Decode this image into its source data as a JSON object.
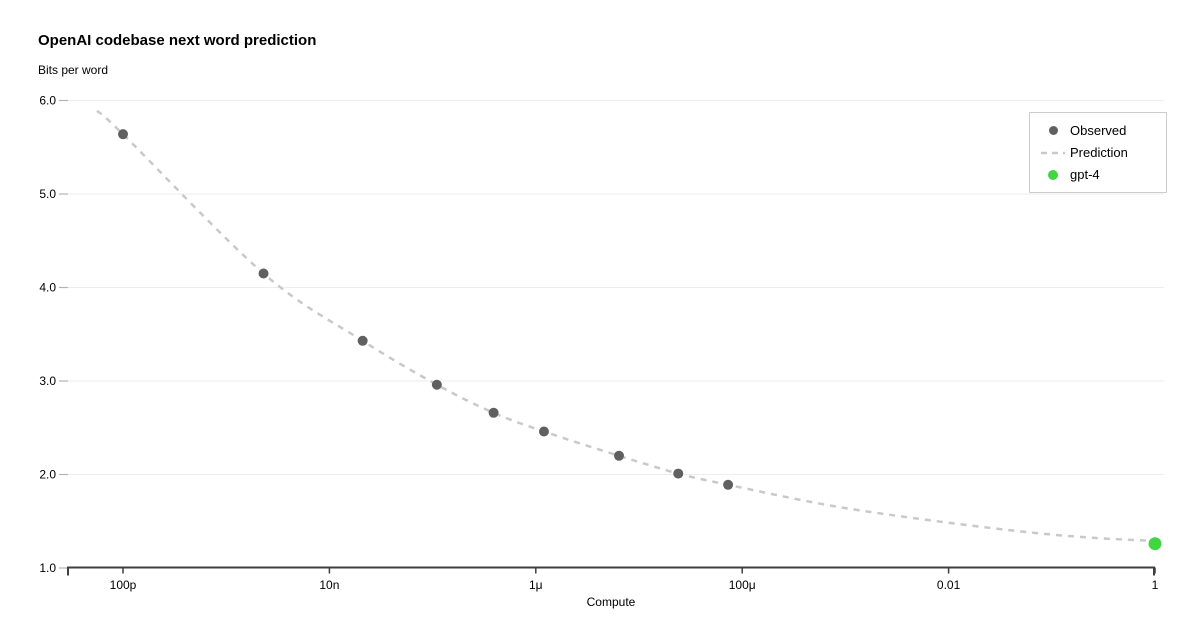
{
  "chart_data": {
    "type": "scatter",
    "title": "OpenAI codebase next word prediction",
    "y_axis_top_label": "Bits per word",
    "xlabel": "Compute",
    "x_scale": "log",
    "xlim": [
      1e-10,
      1
    ],
    "ylim": [
      1.0,
      6.0
    ],
    "grid": "horizontal-only",
    "x_ticks": [
      {
        "label": "100p",
        "value": 1e-10
      },
      {
        "label": "10n",
        "value": 1e-08
      },
      {
        "label": "1μ",
        "value": 1e-06
      },
      {
        "label": "100μ",
        "value": 0.0001
      },
      {
        "label": "0.01",
        "value": 0.01
      },
      {
        "label": "1",
        "value": 1
      }
    ],
    "y_ticks": [
      {
        "label": "1.0",
        "value": 1.0
      },
      {
        "label": "2.0",
        "value": 2.0
      },
      {
        "label": "3.0",
        "value": 3.0
      },
      {
        "label": "4.0",
        "value": 4.0
      },
      {
        "label": "5.0",
        "value": 5.0
      },
      {
        "label": "6.0",
        "value": 6.0
      }
    ],
    "legend": {
      "position": "upper right",
      "entries": [
        "Observed",
        "Prediction",
        "gpt-4"
      ]
    },
    "series": [
      {
        "name": "Observed",
        "type": "scatter",
        "color": "#606060",
        "marker_radius": 5,
        "points": [
          [
            1e-10,
            5.64
          ],
          [
            2.3e-09,
            4.15
          ],
          [
            2.1e-08,
            3.43
          ],
          [
            1.1e-07,
            2.96
          ],
          [
            3.9e-07,
            2.66
          ],
          [
            1.2e-06,
            2.46
          ],
          [
            6.4e-06,
            2.2
          ],
          [
            2.4e-05,
            2.01
          ],
          [
            7.3e-05,
            1.89
          ]
        ]
      },
      {
        "name": "Prediction",
        "type": "dashed-line",
        "color": "#c9c9c9",
        "points": [
          [
            5.6e-11,
            5.89
          ],
          [
            1e-10,
            5.64
          ],
          [
            2.3e-09,
            4.15
          ],
          [
            2.1e-08,
            3.43
          ],
          [
            1.1e-07,
            2.96
          ],
          [
            3.9e-07,
            2.66
          ],
          [
            1.2e-06,
            2.46
          ],
          [
            6.4e-06,
            2.2
          ],
          [
            2.4e-05,
            2.01
          ],
          [
            7.3e-05,
            1.89
          ],
          [
            0.0007,
            1.67
          ],
          [
            0.0066,
            1.51
          ],
          [
            0.062,
            1.38
          ],
          [
            0.28,
            1.32
          ],
          [
            1.0,
            1.29
          ]
        ]
      },
      {
        "name": "gpt-4",
        "type": "scatter",
        "color": "#41d541",
        "marker_radius": 6.5,
        "points": [
          [
            1.0,
            1.26
          ]
        ]
      }
    ]
  },
  "colors": {
    "background": "#ffffff",
    "gridline": "#ededed",
    "y_tick": "#b3b3b3",
    "axis": "#3f3f3f",
    "text": "#000000",
    "observed": "#606060",
    "prediction": "#c9c9c9",
    "gpt4_green": "#41d541",
    "legend_border": "#cccccc"
  }
}
